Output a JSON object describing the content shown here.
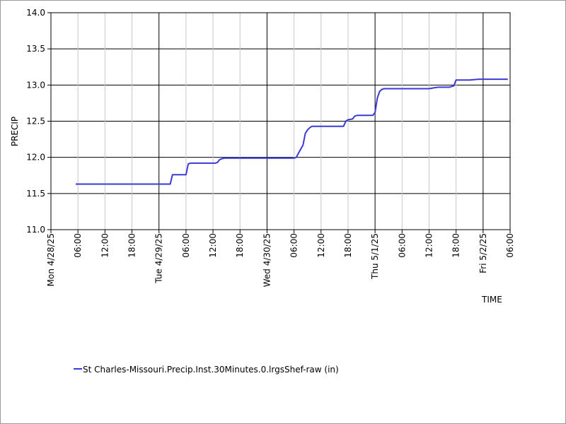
{
  "chart_data": {
    "type": "line",
    "title": "",
    "xlabel": "TIME",
    "ylabel": "PRECIP",
    "ylim": [
      11.0,
      14.0
    ],
    "y_ticks": [
      "11.0",
      "11.5",
      "12.0",
      "12.5",
      "13.0",
      "13.5",
      "14.0"
    ],
    "x_range_hours": [
      0,
      96
    ],
    "x_ticks": [
      {
        "h": 0,
        "label": "Mon 4/28/25",
        "major": true
      },
      {
        "h": 6,
        "label": "06:00",
        "major": false
      },
      {
        "h": 12,
        "label": "12:00",
        "major": false
      },
      {
        "h": 18,
        "label": "18:00",
        "major": false
      },
      {
        "h": 24,
        "label": "Tue 4/29/25",
        "major": true
      },
      {
        "h": 30,
        "label": "06:00",
        "major": false
      },
      {
        "h": 36,
        "label": "12:00",
        "major": false
      },
      {
        "h": 42,
        "label": "18:00",
        "major": false
      },
      {
        "h": 48,
        "label": "Wed 4/30/25",
        "major": true
      },
      {
        "h": 54,
        "label": "06:00",
        "major": false
      },
      {
        "h": 60,
        "label": "12:00",
        "major": false
      },
      {
        "h": 66,
        "label": "18:00",
        "major": false
      },
      {
        "h": 72,
        "label": "Thu 5/1/25",
        "major": true
      },
      {
        "h": 78,
        "label": "06:00",
        "major": false
      },
      {
        "h": 84,
        "label": "12:00",
        "major": false
      },
      {
        "h": 90,
        "label": "18:00",
        "major": false
      },
      {
        "h": 96,
        "label": "Fri 5/2/25",
        "major": true
      },
      {
        "h": 102,
        "label": "06:00",
        "major": false
      }
    ],
    "x_max_hours": 102,
    "grid": true,
    "legend_position": "bottom-left",
    "series": [
      {
        "name": "St Charles-Missouri.Precip.Inst.30Minutes.0.lrgsShef-raw (in)",
        "color": "#3a3ad6",
        "x_hours": [
          5.5,
          21.5,
          23.0,
          23.5,
          24.5,
          25.5,
          26.5,
          27.0,
          29.0,
          29.5,
          30.0,
          30.5,
          31.0,
          33.0,
          36.5,
          37.0,
          37.5,
          38.5,
          41.5,
          54.0,
          54.5,
          55.0,
          56.0,
          56.5,
          57.0,
          57.5,
          58.0,
          58.5,
          59.0,
          65.0,
          65.5,
          66.0,
          67.0,
          67.5,
          68.0,
          71.0,
          71.5,
          72.0,
          72.5,
          73.0,
          73.5,
          74.0,
          75.0,
          84.0,
          85.0,
          86.0,
          87.0,
          88.5,
          89.0,
          89.5,
          90.0,
          93.0,
          95.0,
          101.5
        ],
        "values": [
          11.63,
          11.63,
          11.63,
          11.63,
          11.63,
          11.63,
          11.63,
          11.76,
          11.76,
          11.76,
          11.76,
          11.91,
          11.92,
          11.92,
          11.92,
          11.93,
          11.97,
          11.99,
          11.99,
          11.99,
          12.0,
          12.06,
          12.17,
          12.33,
          12.38,
          12.41,
          12.43,
          12.43,
          12.43,
          12.43,
          12.5,
          12.52,
          12.53,
          12.57,
          12.58,
          12.58,
          12.58,
          12.62,
          12.82,
          12.91,
          12.94,
          12.95,
          12.95,
          12.95,
          12.96,
          12.97,
          12.97,
          12.97,
          12.98,
          12.99,
          13.07,
          13.07,
          13.08,
          13.08
        ]
      }
    ]
  }
}
